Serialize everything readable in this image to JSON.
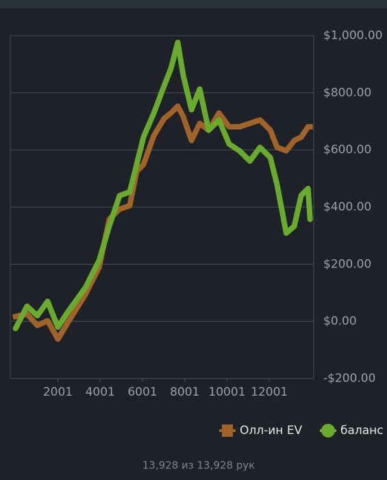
{
  "chart_data": {
    "type": "line",
    "x": [
      1,
      540,
      1030,
      1515,
      2000,
      2490,
      3300,
      3950,
      4430,
      4920,
      5400,
      5730,
      6050,
      6540,
      7030,
      7350,
      7670,
      7930,
      8320,
      8710,
      9130,
      9620,
      10100,
      10590,
      11080,
      11560,
      12050,
      12370,
      12800,
      13180,
      13510,
      13830,
      13928
    ],
    "series": [
      {
        "name": "Олл-ин EV",
        "color": "#a0632a",
        "marker": "square",
        "values": [
          17,
          26,
          -14,
          2,
          -62,
          -2,
          94,
          189,
          357,
          393,
          405,
          525,
          549,
          650,
          710,
          729,
          753,
          717,
          633,
          693,
          669,
          729,
          681,
          681,
          693,
          705,
          669,
          609,
          597,
          633,
          645,
          681,
          681
        ]
      },
      {
        "name": "баланс",
        "color": "#6aaa2e",
        "marker": "circle",
        "values": [
          -25,
          53,
          20,
          70,
          -20,
          35,
          118,
          213,
          333,
          440,
          453,
          550,
          645,
          729,
          825,
          885,
          976,
          861,
          741,
          813,
          669,
          705,
          621,
          597,
          561,
          609,
          573,
          477,
          309,
          333,
          441,
          465,
          357
        ]
      }
    ],
    "xlim": [
      -250,
      14100
    ],
    "xticks": [
      2001,
      4001,
      6001,
      8001,
      10001,
      12001
    ],
    "ylim": [
      -200,
      1000
    ],
    "yticks": [
      {
        "value": -200,
        "label": "-$200.00"
      },
      {
        "value": 0,
        "label": "$0.00"
      },
      {
        "value": 200,
        "label": "$200.00"
      },
      {
        "value": 400,
        "label": "$400.00"
      },
      {
        "value": 600,
        "label": "$600.00"
      },
      {
        "value": 800,
        "label": "$800.00"
      },
      {
        "value": 1000,
        "label": "$1,000.00"
      }
    ],
    "grid": true,
    "legend": "bottom-right"
  },
  "footer": "13,928 из 13,928 рук"
}
